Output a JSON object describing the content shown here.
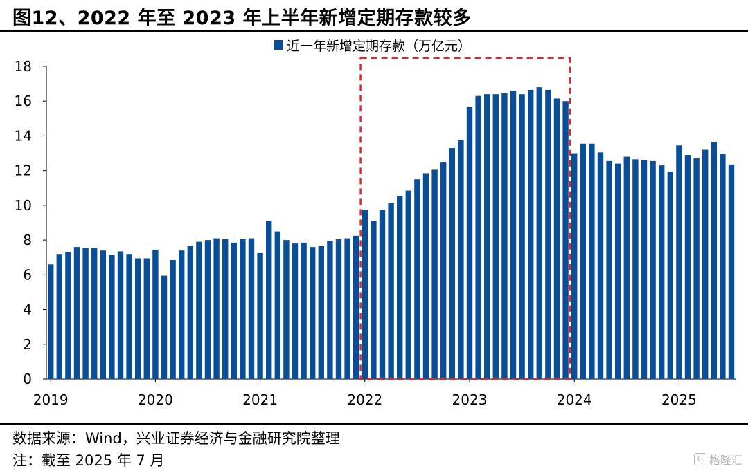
{
  "title": "图12、2022 年至 2023 年上半年新增定期存款较多",
  "source": "数据来源：Wind，兴业证券经济与金融研究院整理",
  "note": "注：截至 2025 年 7 月",
  "watermark": {
    "icon": "G",
    "text": "格隆汇"
  },
  "colors": {
    "bar": "#0b4e98",
    "highlight": "#e0262b"
  },
  "chart_data": {
    "type": "bar",
    "title": "",
    "xlabel": "",
    "ylabel": "",
    "ylim": [
      0,
      18
    ],
    "yticks": [
      "0",
      "2",
      "4",
      "6",
      "8",
      "10",
      "12",
      "14",
      "16",
      "18"
    ],
    "xticks": [
      "2019",
      "2020",
      "2021",
      "2022",
      "2023",
      "2024",
      "2025"
    ],
    "grid": false,
    "legend_position": "top-center",
    "series": [
      {
        "name": "近一年新增定期存款（万亿元）",
        "start": "2019-01",
        "values": [
          6.6,
          7.2,
          7.3,
          7.6,
          7.55,
          7.55,
          7.4,
          7.15,
          7.35,
          7.2,
          6.95,
          6.95,
          7.45,
          5.95,
          6.85,
          7.4,
          7.65,
          7.9,
          8.0,
          8.1,
          8.05,
          7.85,
          8.05,
          8.1,
          7.25,
          9.1,
          8.5,
          8.0,
          7.8,
          7.85,
          7.6,
          7.65,
          7.95,
          8.05,
          8.1,
          8.25,
          9.75,
          9.1,
          9.75,
          10.15,
          10.55,
          10.85,
          11.5,
          11.85,
          12.05,
          12.5,
          13.3,
          13.75,
          15.65,
          16.3,
          16.4,
          16.4,
          16.45,
          16.6,
          16.4,
          16.65,
          16.8,
          16.65,
          16.15,
          16.0,
          13.0,
          13.55,
          13.55,
          13.05,
          12.55,
          12.4,
          12.8,
          12.65,
          12.6,
          12.55,
          12.3,
          11.95,
          13.45,
          12.9,
          12.7,
          13.2,
          13.65,
          12.95,
          12.35
        ]
      }
    ],
    "annotations": [
      {
        "type": "dashed-box",
        "from": "2022-01",
        "to": "2023-12"
      }
    ]
  }
}
